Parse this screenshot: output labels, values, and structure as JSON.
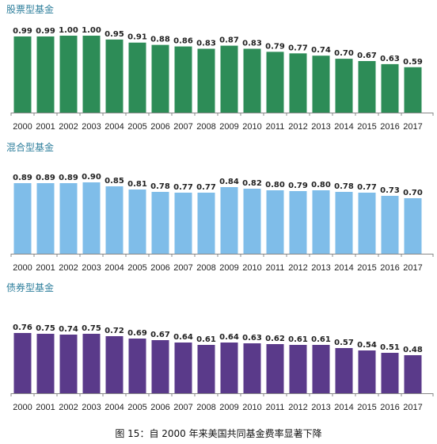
{
  "colors": {
    "equity": "#2d8c57",
    "hybrid": "#7fbde9",
    "bond": "#5a3a8a",
    "title": "#2f7f9c",
    "axis": "#888888"
  },
  "chart_data": [
    {
      "type": "bar",
      "title": "股票型基金",
      "categories": [
        "2000",
        "2001",
        "2002",
        "2003",
        "2004",
        "2005",
        "2006",
        "2007",
        "2008",
        "2009",
        "2010",
        "2011",
        "2012",
        "2013",
        "2014",
        "2015",
        "2016",
        "2017"
      ],
      "values": [
        0.99,
        0.99,
        1.0,
        1.0,
        0.95,
        0.91,
        0.88,
        0.86,
        0.83,
        0.87,
        0.83,
        0.79,
        0.77,
        0.74,
        0.7,
        0.67,
        0.63,
        0.59
      ],
      "value_labels": [
        "0.99",
        "0.99",
        "1.00",
        "1.00",
        "0.95",
        "0.91",
        "0.88",
        "0.86",
        "0.83",
        "0.87",
        "0.83",
        "0.79",
        "0.77",
        "0.74",
        "0.70",
        "0.67",
        "0.63",
        "0.59"
      ],
      "ylim": [
        0,
        1.0
      ],
      "color": "#2d8c57"
    },
    {
      "type": "bar",
      "title": "混合型基金",
      "categories": [
        "2000",
        "2001",
        "2002",
        "2003",
        "2004",
        "2005",
        "2006",
        "2007",
        "2008",
        "2009",
        "2010",
        "2011",
        "2012",
        "2013",
        "2014",
        "2015",
        "2016",
        "2017"
      ],
      "values": [
        0.89,
        0.89,
        0.89,
        0.9,
        0.85,
        0.81,
        0.78,
        0.77,
        0.77,
        0.84,
        0.82,
        0.8,
        0.79,
        0.8,
        0.78,
        0.77,
        0.73,
        0.7
      ],
      "value_labels": [
        "0.89",
        "0.89",
        "0.89",
        "0.90",
        "0.85",
        "0.81",
        "0.78",
        "0.77",
        "0.77",
        "0.84",
        "0.82",
        "0.80",
        "0.79",
        "0.80",
        "0.78",
        "0.77",
        "0.73",
        "0.70"
      ],
      "ylim": [
        0,
        0.9
      ],
      "color": "#7fbde9"
    },
    {
      "type": "bar",
      "title": "债券型基金",
      "categories": [
        "2000",
        "2001",
        "2002",
        "2003",
        "2004",
        "2005",
        "2006",
        "2007",
        "2008",
        "2009",
        "2010",
        "2011",
        "2012",
        "2013",
        "2014",
        "2015",
        "2016",
        "2017"
      ],
      "values": [
        0.76,
        0.75,
        0.74,
        0.75,
        0.72,
        0.69,
        0.67,
        0.64,
        0.61,
        0.64,
        0.63,
        0.62,
        0.61,
        0.61,
        0.57,
        0.54,
        0.51,
        0.48
      ],
      "value_labels": [
        "0.76",
        "0.75",
        "0.74",
        "0.75",
        "0.72",
        "0.69",
        "0.67",
        "0.64",
        "0.61",
        "0.64",
        "0.63",
        "0.62",
        "0.61",
        "0.61",
        "0.57",
        "0.54",
        "0.51",
        "0.48"
      ],
      "ylim": [
        0,
        0.76
      ],
      "color": "#5a3a8a"
    }
  ],
  "caption": "图 15：自 2000 年来美国共同基金费率显著下降"
}
